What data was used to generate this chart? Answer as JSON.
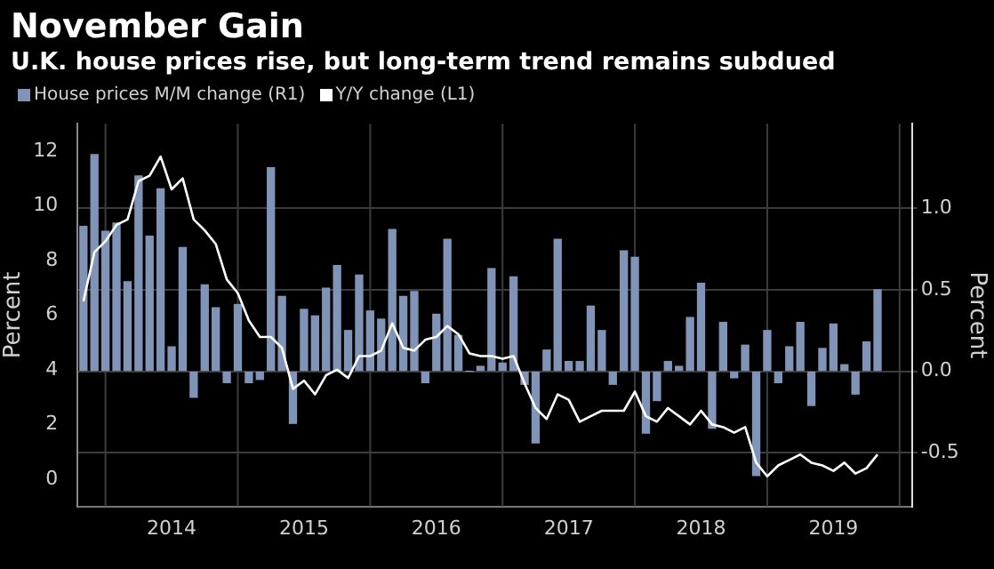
{
  "chart_data": {
    "type": "bar",
    "title": "November Gain",
    "subtitle": "U.K. house prices rise, but long-term trend remains subdued",
    "ylabel": "Percent",
    "y2label": "Percent",
    "x": [
      "2013-11",
      "2013-12",
      "2014-01",
      "2014-02",
      "2014-03",
      "2014-04",
      "2014-05",
      "2014-06",
      "2014-07",
      "2014-08",
      "2014-09",
      "2014-10",
      "2014-11",
      "2014-12",
      "2015-01",
      "2015-02",
      "2015-03",
      "2015-04",
      "2015-05",
      "2015-06",
      "2015-07",
      "2015-08",
      "2015-09",
      "2015-10",
      "2015-11",
      "2015-12",
      "2016-01",
      "2016-02",
      "2016-03",
      "2016-04",
      "2016-05",
      "2016-06",
      "2016-07",
      "2016-08",
      "2016-09",
      "2016-10",
      "2016-11",
      "2016-12",
      "2017-01",
      "2017-02",
      "2017-03",
      "2017-04",
      "2017-05",
      "2017-06",
      "2017-07",
      "2017-08",
      "2017-09",
      "2017-10",
      "2017-11",
      "2017-12",
      "2018-01",
      "2018-02",
      "2018-03",
      "2018-04",
      "2018-05",
      "2018-06",
      "2018-07",
      "2018-08",
      "2018-09",
      "2018-10",
      "2018-11",
      "2018-12",
      "2019-01",
      "2019-02",
      "2019-03",
      "2019-04",
      "2019-05",
      "2019-06",
      "2019-07",
      "2019-08",
      "2019-09",
      "2019-10",
      "2019-11"
    ],
    "series": [
      {
        "name": "House prices M/M change (R1)",
        "axis": "y2",
        "color": "#8094b8",
        "values": [
          0.89,
          1.33,
          0.86,
          0.91,
          0.55,
          1.2,
          0.83,
          1.12,
          0.15,
          0.76,
          -0.16,
          0.53,
          0.39,
          -0.07,
          0.41,
          -0.07,
          -0.05,
          1.25,
          0.46,
          -0.32,
          0.38,
          0.34,
          0.51,
          0.65,
          0.25,
          0.59,
          0.37,
          0.32,
          0.87,
          0.46,
          0.49,
          -0.07,
          0.35,
          0.81,
          0.22,
          0.0,
          0.03,
          0.63,
          0.05,
          0.58,
          -0.08,
          -0.44,
          0.13,
          0.81,
          0.06,
          0.06,
          0.4,
          0.25,
          -0.08,
          0.74,
          0.7,
          -0.38,
          -0.18,
          0.06,
          0.03,
          0.33,
          0.54,
          -0.35,
          0.3,
          -0.04,
          0.16,
          -0.64,
          0.25,
          -0.07,
          0.15,
          0.3,
          -0.21,
          0.14,
          0.29,
          0.04,
          -0.14,
          0.18,
          0.5
        ]
      },
      {
        "name": "Y/Y change (L1)",
        "type": "line",
        "axis": "y",
        "color": "#ffffff",
        "values": [
          6.5,
          8.3,
          8.7,
          9.3,
          9.5,
          10.9,
          11.1,
          11.8,
          10.6,
          11.0,
          9.5,
          9.1,
          8.6,
          7.3,
          6.8,
          5.8,
          5.2,
          5.2,
          4.8,
          3.3,
          3.6,
          3.1,
          3.8,
          4.0,
          3.7,
          4.5,
          4.5,
          4.7,
          5.7,
          4.8,
          4.7,
          5.1,
          5.2,
          5.6,
          5.3,
          4.6,
          4.5,
          4.5,
          4.4,
          4.5,
          3.5,
          2.6,
          2.2,
          3.1,
          2.9,
          2.1,
          2.3,
          2.5,
          2.5,
          2.5,
          3.2,
          2.3,
          2.1,
          2.6,
          2.3,
          2.0,
          2.5,
          2.0,
          1.9,
          1.7,
          1.9,
          0.6,
          0.1,
          0.5,
          0.7,
          0.9,
          0.6,
          0.5,
          0.3,
          0.6,
          0.2,
          0.4,
          0.9
        ]
      }
    ],
    "xlim": [
      "2013-10-15",
      "2020-02-05"
    ],
    "xticks": [
      {
        "value": "2014-07",
        "label": "2014"
      },
      {
        "value": "2015-07",
        "label": "2015"
      },
      {
        "value": "2016-07",
        "label": "2016"
      },
      {
        "value": "2017-07",
        "label": "2017"
      },
      {
        "value": "2018-07",
        "label": "2018"
      },
      {
        "value": "2019-07",
        "label": "2019"
      }
    ],
    "ylim": [
      -1,
      13
    ],
    "yticks": [
      0,
      2,
      4,
      6,
      8,
      10,
      12
    ],
    "y2lim": [
      -0.83,
      1.52
    ],
    "y2ticks": [
      {
        "value": -0.5,
        "label": "-0.5"
      },
      {
        "value": 0,
        "label": "0.0"
      },
      {
        "value": 0.5,
        "label": "0.5"
      },
      {
        "value": 1,
        "label": "1.0"
      }
    ],
    "ref_lines": [
      {
        "axis": "x",
        "value": "2014-01",
        "color": "#3c3c3c"
      },
      {
        "axis": "x",
        "value": "2015-01",
        "color": "#3c3c3c"
      },
      {
        "axis": "x",
        "value": "2016-01",
        "color": "#3c3c3c"
      },
      {
        "axis": "x",
        "value": "2017-01",
        "color": "#3c3c3c"
      },
      {
        "axis": "x",
        "value": "2018-01",
        "color": "#3c3c3c"
      },
      {
        "axis": "x",
        "value": "2019-01",
        "color": "#3c3c3c"
      },
      {
        "axis": "x",
        "value": "2020-01",
        "color": "#3c3c3c"
      }
    ],
    "grid": "y",
    "legend": "top left"
  }
}
